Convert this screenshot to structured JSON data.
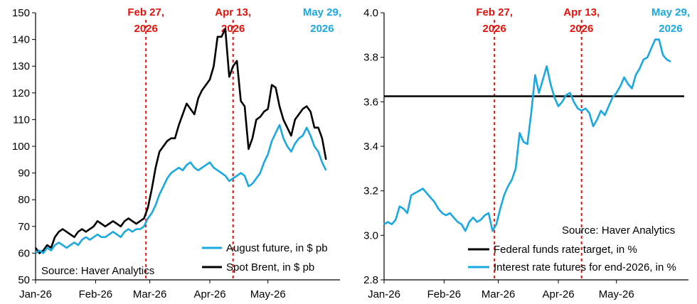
{
  "chart_data": [
    {
      "type": "line",
      "title": "",
      "xlabel": "",
      "ylabel": "",
      "ylim": [
        50,
        150
      ],
      "y_ticks": [
        "50",
        "60",
        "70",
        "80",
        "90",
        "100",
        "110",
        "120",
        "130",
        "140",
        "150"
      ],
      "x_ticks": [
        "Jan-26",
        "Feb-26",
        "Mar-26",
        "Apr-26",
        "May-26"
      ],
      "x_tick_days": [
        0,
        31,
        59,
        90,
        120
      ],
      "x_range_days": [
        0,
        155
      ],
      "grid": false,
      "legend_position": "bottom-right",
      "source": "Source: Haver Analytics",
      "annotations": [
        {
          "day": 57,
          "lines": [
            "Feb 27,",
            "2026"
          ],
          "color": "#e3120b"
        },
        {
          "day": 102,
          "lines": [
            "Apr 13,",
            "2026"
          ],
          "color": "#e3120b"
        },
        {
          "day": 148,
          "lines": [
            "May 29,",
            "2026"
          ],
          "color": "#1aa8e0"
        }
      ],
      "series": [
        {
          "name": "Spot Brent, in $ pb",
          "color": "#000000",
          "points": [
            [
              0,
              62
            ],
            [
              2,
              60
            ],
            [
              4,
              61
            ],
            [
              6,
              63
            ],
            [
              8,
              62
            ],
            [
              10,
              66
            ],
            [
              12,
              68
            ],
            [
              14,
              69
            ],
            [
              16,
              68
            ],
            [
              18,
              67
            ],
            [
              20,
              66
            ],
            [
              22,
              68
            ],
            [
              24,
              69
            ],
            [
              26,
              68
            ],
            [
              28,
              69
            ],
            [
              30,
              70
            ],
            [
              32,
              72
            ],
            [
              34,
              71
            ],
            [
              36,
              70
            ],
            [
              38,
              71
            ],
            [
              40,
              72
            ],
            [
              42,
              71
            ],
            [
              44,
              70
            ],
            [
              46,
              72
            ],
            [
              48,
              73
            ],
            [
              50,
              72
            ],
            [
              52,
              71
            ],
            [
              54,
              72
            ],
            [
              56,
              73
            ],
            [
              58,
              77
            ],
            [
              60,
              84
            ],
            [
              62,
              92
            ],
            [
              64,
              98
            ],
            [
              66,
              100
            ],
            [
              68,
              102
            ],
            [
              70,
              103
            ],
            [
              72,
              103
            ],
            [
              74,
              108
            ],
            [
              76,
              112
            ],
            [
              78,
              116
            ],
            [
              80,
              114
            ],
            [
              82,
              112
            ],
            [
              84,
              118
            ],
            [
              86,
              121
            ],
            [
              88,
              123
            ],
            [
              90,
              125
            ],
            [
              92,
              130
            ],
            [
              94,
              141
            ],
            [
              96,
              141
            ],
            [
              98,
              144
            ],
            [
              100,
              126
            ],
            [
              102,
              130
            ],
            [
              104,
              132
            ],
            [
              106,
              117
            ],
            [
              108,
              115
            ],
            [
              110,
              99
            ],
            [
              112,
              103
            ],
            [
              114,
              110
            ],
            [
              116,
              111
            ],
            [
              118,
              113
            ],
            [
              120,
              114
            ],
            [
              122,
              123
            ],
            [
              124,
              122
            ],
            [
              126,
              115
            ],
            [
              128,
              110
            ],
            [
              130,
              107
            ],
            [
              132,
              104
            ],
            [
              134,
              110
            ],
            [
              136,
              112
            ],
            [
              138,
              114
            ],
            [
              140,
              115
            ],
            [
              142,
              113
            ],
            [
              144,
              107
            ],
            [
              146,
              107
            ],
            [
              148,
              103
            ],
            [
              150,
              95
            ]
          ]
        },
        {
          "name": "August future, in $ pb",
          "color": "#1aa8e0",
          "points": [
            [
              0,
              60
            ],
            [
              2,
              61
            ],
            [
              4,
              60
            ],
            [
              6,
              62
            ],
            [
              8,
              61
            ],
            [
              10,
              63
            ],
            [
              12,
              64
            ],
            [
              14,
              63
            ],
            [
              16,
              62
            ],
            [
              18,
              63
            ],
            [
              20,
              64
            ],
            [
              22,
              63
            ],
            [
              24,
              65
            ],
            [
              26,
              66
            ],
            [
              28,
              65
            ],
            [
              30,
              66
            ],
            [
              32,
              67
            ],
            [
              34,
              66
            ],
            [
              36,
              66
            ],
            [
              38,
              67
            ],
            [
              40,
              68
            ],
            [
              42,
              67
            ],
            [
              44,
              66
            ],
            [
              46,
              68
            ],
            [
              48,
              69
            ],
            [
              50,
              68
            ],
            [
              52,
              69
            ],
            [
              54,
              69
            ],
            [
              56,
              70
            ],
            [
              58,
              73
            ],
            [
              60,
              75
            ],
            [
              62,
              78
            ],
            [
              64,
              82
            ],
            [
              66,
              85
            ],
            [
              68,
              88
            ],
            [
              70,
              90
            ],
            [
              72,
              91
            ],
            [
              74,
              92
            ],
            [
              76,
              91
            ],
            [
              78,
              93
            ],
            [
              80,
              94
            ],
            [
              82,
              92
            ],
            [
              84,
              91
            ],
            [
              86,
              92
            ],
            [
              88,
              93
            ],
            [
              90,
              94
            ],
            [
              92,
              92
            ],
            [
              94,
              91
            ],
            [
              96,
              90
            ],
            [
              98,
              89
            ],
            [
              100,
              87
            ],
            [
              102,
              88
            ],
            [
              104,
              89
            ],
            [
              106,
              90
            ],
            [
              108,
              89
            ],
            [
              110,
              85
            ],
            [
              112,
              86
            ],
            [
              114,
              88
            ],
            [
              116,
              90
            ],
            [
              118,
              94
            ],
            [
              120,
              97
            ],
            [
              122,
              102
            ],
            [
              124,
              105
            ],
            [
              126,
              108
            ],
            [
              128,
              103
            ],
            [
              130,
              100
            ],
            [
              132,
              98
            ],
            [
              134,
              101
            ],
            [
              136,
              103
            ],
            [
              138,
              104
            ],
            [
              140,
              107
            ],
            [
              142,
              104
            ],
            [
              144,
              100
            ],
            [
              146,
              98
            ],
            [
              148,
              94
            ],
            [
              150,
              91
            ]
          ]
        }
      ]
    },
    {
      "type": "line",
      "title": "",
      "xlabel": "",
      "ylabel": "",
      "ylim": [
        2.8,
        4.0
      ],
      "y_ticks": [
        "2.8",
        "3.0",
        "3.2",
        "3.4",
        "3.6",
        "3.8",
        "4.0"
      ],
      "x_ticks": [
        "Jan-26",
        "Feb-26",
        "Mar-26",
        "Apr-26",
        "May-26"
      ],
      "x_tick_days": [
        0,
        31,
        59,
        90,
        120
      ],
      "x_range_days": [
        0,
        155
      ],
      "grid": false,
      "legend_position": "bottom-right",
      "source": "Source: Haver Analytics",
      "annotations": [
        {
          "day": 57,
          "lines": [
            "Feb 27,",
            "2026"
          ],
          "color": "#e3120b"
        },
        {
          "day": 102,
          "lines": [
            "Apr 13,",
            "2026"
          ],
          "color": "#e3120b"
        },
        {
          "day": 148,
          "lines": [
            "May 29,",
            "2026"
          ],
          "color": "#1aa8e0"
        }
      ],
      "series": [
        {
          "name": "Federal funds rate target, in %",
          "color": "#000000",
          "points": [
            [
              0,
              3.625
            ],
            [
              155,
              3.625
            ]
          ]
        },
        {
          "name": "Interest rate futures for end-2026, in %",
          "color": "#1aa8e0",
          "points": [
            [
              0,
              3.05
            ],
            [
              2,
              3.06
            ],
            [
              4,
              3.05
            ],
            [
              6,
              3.07
            ],
            [
              8,
              3.13
            ],
            [
              10,
              3.12
            ],
            [
              12,
              3.1
            ],
            [
              14,
              3.18
            ],
            [
              16,
              3.19
            ],
            [
              18,
              3.2
            ],
            [
              20,
              3.21
            ],
            [
              22,
              3.19
            ],
            [
              24,
              3.17
            ],
            [
              26,
              3.15
            ],
            [
              28,
              3.12
            ],
            [
              30,
              3.1
            ],
            [
              32,
              3.09
            ],
            [
              34,
              3.1
            ],
            [
              36,
              3.08
            ],
            [
              38,
              3.06
            ],
            [
              40,
              3.05
            ],
            [
              42,
              3.02
            ],
            [
              44,
              3.06
            ],
            [
              46,
              3.08
            ],
            [
              48,
              3.06
            ],
            [
              50,
              3.07
            ],
            [
              52,
              3.09
            ],
            [
              54,
              3.1
            ],
            [
              56,
              3.02
            ],
            [
              58,
              3.05
            ],
            [
              60,
              3.12
            ],
            [
              62,
              3.18
            ],
            [
              64,
              3.22
            ],
            [
              66,
              3.25
            ],
            [
              68,
              3.3
            ],
            [
              70,
              3.46
            ],
            [
              72,
              3.42
            ],
            [
              74,
              3.41
            ],
            [
              76,
              3.55
            ],
            [
              78,
              3.72
            ],
            [
              80,
              3.64
            ],
            [
              82,
              3.7
            ],
            [
              84,
              3.76
            ],
            [
              86,
              3.68
            ],
            [
              88,
              3.62
            ],
            [
              90,
              3.58
            ],
            [
              92,
              3.6
            ],
            [
              94,
              3.63
            ],
            [
              96,
              3.64
            ],
            [
              98,
              3.6
            ],
            [
              100,
              3.57
            ],
            [
              102,
              3.56
            ],
            [
              104,
              3.57
            ],
            [
              106,
              3.55
            ],
            [
              108,
              3.49
            ],
            [
              110,
              3.52
            ],
            [
              112,
              3.56
            ],
            [
              114,
              3.54
            ],
            [
              116,
              3.58
            ],
            [
              118,
              3.62
            ],
            [
              120,
              3.64
            ],
            [
              122,
              3.67
            ],
            [
              124,
              3.71
            ],
            [
              126,
              3.68
            ],
            [
              128,
              3.66
            ],
            [
              130,
              3.72
            ],
            [
              132,
              3.75
            ],
            [
              134,
              3.79
            ],
            [
              136,
              3.8
            ],
            [
              138,
              3.84
            ],
            [
              140,
              3.88
            ],
            [
              142,
              3.88
            ],
            [
              144,
              3.81
            ],
            [
              146,
              3.79
            ],
            [
              148,
              3.78
            ]
          ]
        }
      ]
    }
  ]
}
